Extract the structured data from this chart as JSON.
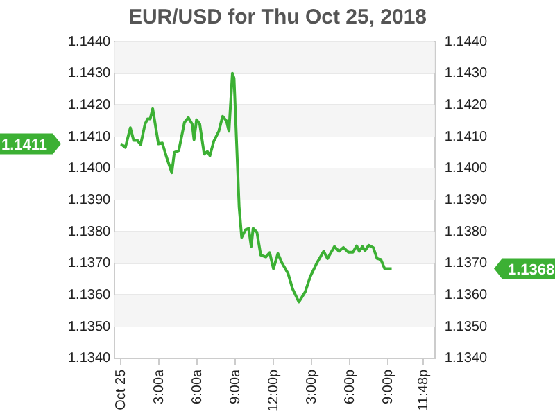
{
  "chart_data": {
    "type": "line",
    "title": "EUR/USD for Thu Oct 25, 2018",
    "x": [
      0,
      0.35,
      0.74,
      1.0,
      1.3,
      1.55,
      1.9,
      2.1,
      2.3,
      2.5,
      2.95,
      3.25,
      3.6,
      4.0,
      4.2,
      4.55,
      5.0,
      5.3,
      5.6,
      5.75,
      5.95,
      6.2,
      6.55,
      6.8,
      7.0,
      7.3,
      7.7,
      8.0,
      8.3,
      8.5,
      8.77,
      8.9,
      9.3,
      9.5,
      9.8,
      10.05,
      10.25,
      10.4,
      10.7,
      11.0,
      11.4,
      11.7,
      12.0,
      12.35,
      12.65,
      13.15,
      13.5,
      14.0,
      14.5,
      14.9,
      15.4,
      15.95,
      16.25,
      16.8,
      17.15,
      17.5,
      17.9,
      18.25,
      18.55,
      18.75,
      19.0,
      19.2,
      19.5,
      19.85,
      20.15,
      20.45,
      20.75,
      21.3
    ],
    "series": [
      {
        "color": "#3cb034",
        "values": [
          1.14077,
          1.14066,
          1.14128,
          1.14088,
          1.14088,
          1.14075,
          1.1414,
          1.14156,
          1.14156,
          1.14188,
          1.14077,
          1.1408,
          1.14034,
          1.13986,
          1.1405,
          1.14056,
          1.14145,
          1.1416,
          1.1414,
          1.1409,
          1.14153,
          1.1414,
          1.14045,
          1.14053,
          1.1404,
          1.14085,
          1.14117,
          1.14164,
          1.1415,
          1.14117,
          1.143,
          1.14284,
          1.13878,
          1.13782,
          1.13806,
          1.1381,
          1.13753,
          1.1381,
          1.13798,
          1.13726,
          1.1372,
          1.13734,
          1.13683,
          1.13731,
          1.13703,
          1.13668,
          1.1362,
          1.13578,
          1.1361,
          1.13658,
          1.137,
          1.13738,
          1.13715,
          1.13753,
          1.13738,
          1.1375,
          1.13735,
          1.13735,
          1.13755,
          1.13738,
          1.13753,
          1.1374,
          1.13757,
          1.1375,
          1.13715,
          1.13712,
          1.13683,
          1.13683
        ]
      }
    ],
    "xlim": [
      -0.5,
      24.7
    ],
    "xticks": [
      {
        "value": 0,
        "label": "Oct 25"
      },
      {
        "value": 3,
        "label": "3:00a"
      },
      {
        "value": 6,
        "label": "6:00a"
      },
      {
        "value": 9,
        "label": "9:00a"
      },
      {
        "value": 12,
        "label": "12:00p"
      },
      {
        "value": 15,
        "label": "3:00p"
      },
      {
        "value": 18,
        "label": "6:00p"
      },
      {
        "value": 21,
        "label": "9:00p"
      },
      {
        "value": 23.8,
        "label": "11:48p"
      }
    ],
    "ylim": [
      1.134,
      1.144
    ],
    "yticks": [
      {
        "value": 1.134,
        "label": "1.1340"
      },
      {
        "value": 1.135,
        "label": "1.1350"
      },
      {
        "value": 1.136,
        "label": "1.1360"
      },
      {
        "value": 1.137,
        "label": "1.1370"
      },
      {
        "value": 1.138,
        "label": "1.1380"
      },
      {
        "value": 1.139,
        "label": "1.1390"
      },
      {
        "value": 1.14,
        "label": "1.1400"
      },
      {
        "value": 1.141,
        "label": "1.1410"
      },
      {
        "value": 1.142,
        "label": "1.1420"
      },
      {
        "value": 1.143,
        "label": "1.1430"
      },
      {
        "value": 1.144,
        "label": "1.1440"
      }
    ],
    "y2lim": [
      1.134,
      1.144
    ],
    "y2ticks": [
      {
        "value": 1.134,
        "label": "1.1340"
      },
      {
        "value": 1.135,
        "label": "1.1350"
      },
      {
        "value": 1.136,
        "label": "1.1360"
      },
      {
        "value": 1.137,
        "label": "1.1370"
      },
      {
        "value": 1.138,
        "label": "1.1380"
      },
      {
        "value": 1.139,
        "label": "1.1390"
      },
      {
        "value": 1.14,
        "label": "1.1400"
      },
      {
        "value": 1.141,
        "label": "1.1410"
      },
      {
        "value": 1.142,
        "label": "1.1420"
      },
      {
        "value": 1.143,
        "label": "1.1430"
      },
      {
        "value": 1.144,
        "label": "1.1440"
      }
    ],
    "annotations": [
      "1.1411",
      "1.1368"
    ],
    "grid": "y",
    "legend": false,
    "marker": "none",
    "line_style": "solid"
  }
}
